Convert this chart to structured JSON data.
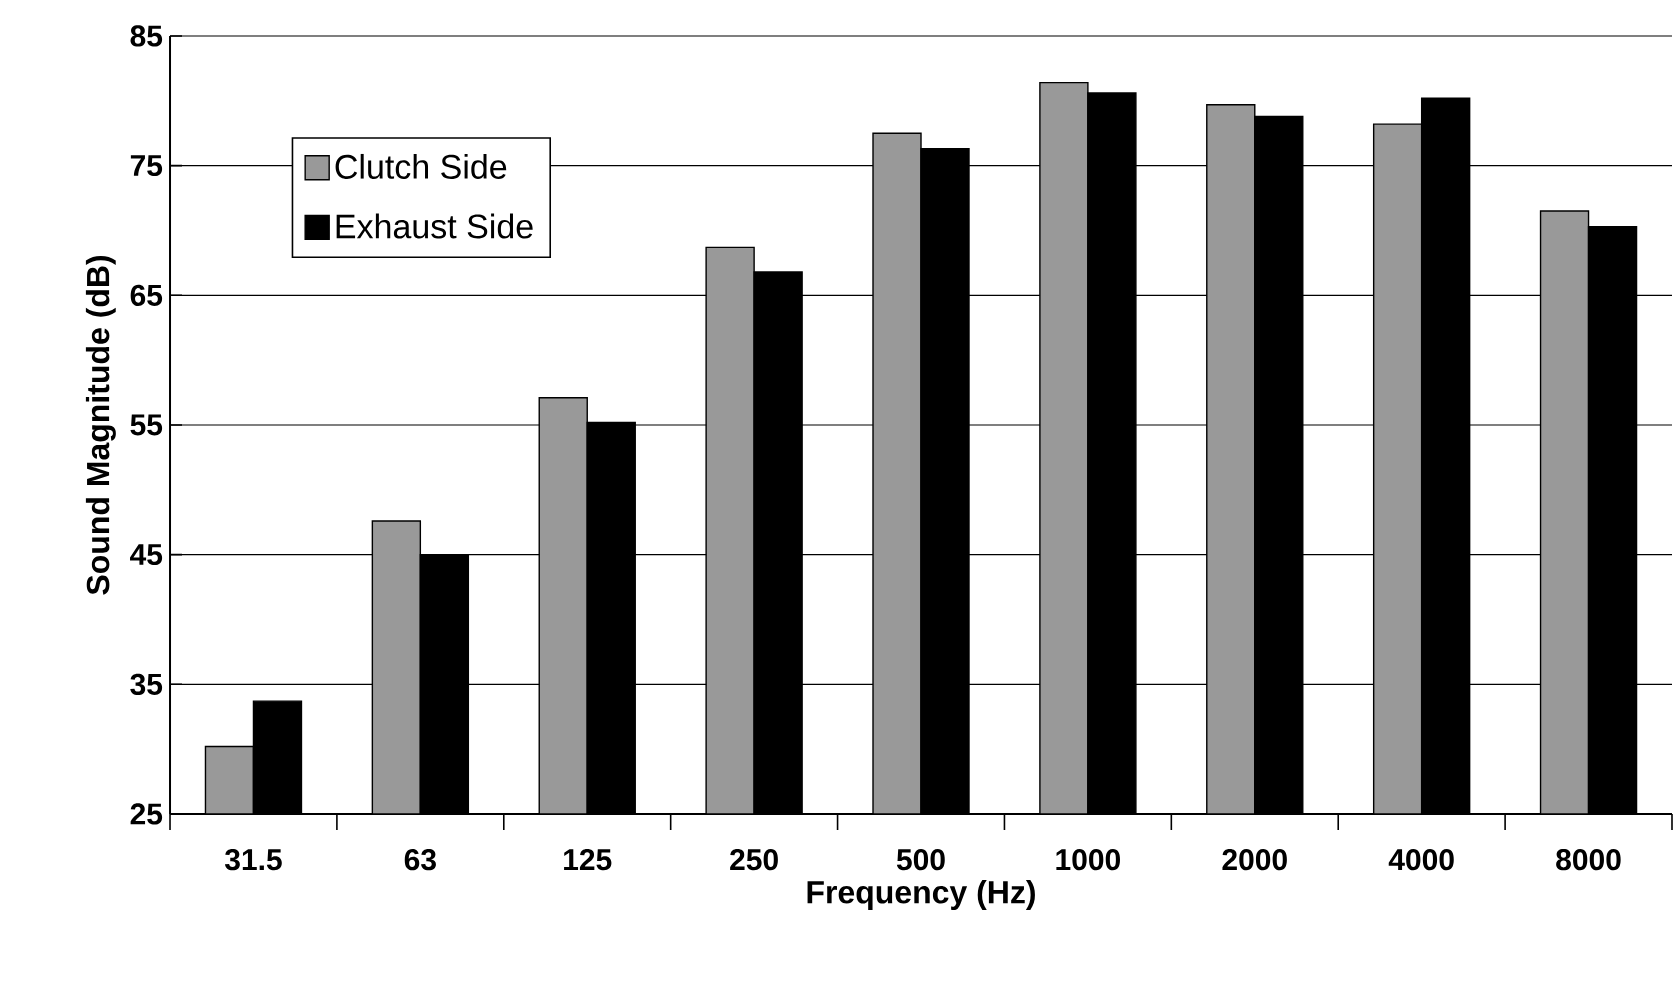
{
  "chart_data": {
    "type": "bar",
    "xlabel": "Frequency (Hz)",
    "ylabel": "Sound Magnitude (dB)",
    "categories": [
      "31.5",
      "63",
      "125",
      "250",
      "500",
      "1000",
      "2000",
      "4000",
      "8000"
    ],
    "series": [
      {
        "name": "Clutch Side",
        "color": "#999999",
        "values": [
          30.2,
          47.6,
          57.1,
          68.7,
          77.5,
          81.4,
          79.7,
          78.2,
          71.5
        ]
      },
      {
        "name": "Exhaust Side",
        "color": "#000000",
        "values": [
          33.7,
          45.0,
          55.2,
          66.8,
          76.3,
          80.6,
          78.8,
          80.2,
          70.3
        ]
      }
    ],
    "ylim": [
      25,
      85
    ],
    "yticks": [
      25,
      35,
      45,
      55,
      65,
      75,
      85
    ],
    "grid": "y",
    "legend": "top left"
  }
}
